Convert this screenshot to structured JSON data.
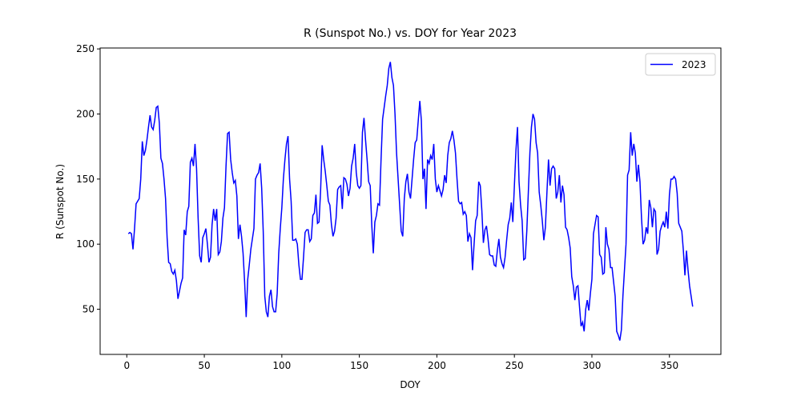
{
  "chart_data": {
    "type": "line",
    "title": "R (Sunspot No.) vs. DOY for Year 2023",
    "x_label": "DOY",
    "y_label": "R (Sunspot No.)",
    "x": [
      1,
      2,
      3,
      4,
      5,
      6,
      7,
      8,
      9,
      10,
      11,
      12,
      13,
      14,
      15,
      16,
      17,
      18,
      19,
      20,
      21,
      22,
      23,
      24,
      25,
      26,
      27,
      28,
      29,
      30,
      31,
      32,
      33,
      34,
      35,
      36,
      37,
      38,
      39,
      40,
      41,
      42,
      43,
      44,
      45,
      46,
      47,
      48,
      49,
      50,
      51,
      52,
      53,
      54,
      55,
      56,
      57,
      58,
      59,
      60,
      61,
      62,
      63,
      64,
      65,
      66,
      67,
      68,
      69,
      70,
      71,
      72,
      73,
      74,
      75,
      76,
      77,
      78,
      79,
      80,
      81,
      82,
      83,
      84,
      85,
      86,
      87,
      88,
      89,
      90,
      91,
      92,
      93,
      94,
      95,
      96,
      97,
      98,
      99,
      100,
      101,
      102,
      103,
      104,
      105,
      106,
      107,
      108,
      109,
      110,
      111,
      112,
      113,
      114,
      115,
      116,
      117,
      118,
      119,
      120,
      121,
      122,
      123,
      124,
      125,
      126,
      127,
      128,
      129,
      130,
      131,
      132,
      133,
      134,
      135,
      136,
      137,
      138,
      139,
      140,
      141,
      142,
      143,
      144,
      145,
      146,
      147,
      148,
      149,
      150,
      151,
      152,
      153,
      154,
      155,
      156,
      157,
      158,
      159,
      160,
      161,
      162,
      163,
      164,
      165,
      166,
      167,
      168,
      169,
      170,
      171,
      172,
      173,
      174,
      175,
      176,
      177,
      178,
      179,
      180,
      181,
      182,
      183,
      184,
      185,
      186,
      187,
      188,
      189,
      190,
      191,
      192,
      193,
      194,
      195,
      196,
      197,
      198,
      199,
      200,
      201,
      202,
      203,
      204,
      205,
      206,
      207,
      208,
      209,
      210,
      211,
      212,
      213,
      214,
      215,
      216,
      217,
      218,
      219,
      220,
      221,
      222,
      223,
      224,
      225,
      226,
      227,
      228,
      229,
      230,
      231,
      232,
      233,
      234,
      235,
      236,
      237,
      238,
      239,
      240,
      241,
      242,
      243,
      244,
      245,
      246,
      247,
      248,
      249,
      250,
      251,
      252,
      253,
      254,
      255,
      256,
      257,
      258,
      259,
      260,
      261,
      262,
      263,
      264,
      265,
      266,
      267,
      268,
      269,
      270,
      271,
      272,
      273,
      274,
      275,
      276,
      277,
      278,
      279,
      280,
      281,
      282,
      283,
      284,
      285,
      286,
      287,
      288,
      289,
      290,
      291,
      292,
      293,
      294,
      295,
      296,
      297,
      298,
      299,
      300,
      301,
      302,
      303,
      304,
      305,
      306,
      307,
      308,
      309,
      310,
      311,
      312,
      313,
      314,
      315,
      316,
      317,
      318,
      319,
      320,
      321,
      322,
      323,
      324,
      325,
      326,
      327,
      328,
      329,
      330,
      331,
      332,
      333,
      334,
      335,
      336,
      337,
      338,
      339,
      340,
      341,
      342,
      343,
      344,
      345,
      346,
      347,
      348,
      349,
      350,
      351,
      352,
      353,
      354,
      355,
      356,
      357,
      358,
      359,
      360,
      361,
      362,
      363,
      364,
      365
    ],
    "series": [
      {
        "name": "2023",
        "color": "#0000ff",
        "values": [
          108,
          109,
          108,
          96,
          112,
          131,
          133,
          135,
          150,
          179,
          168,
          172,
          180,
          190,
          199,
          190,
          188,
          195,
          205,
          206,
          193,
          166,
          162,
          150,
          135,
          105,
          86,
          85,
          79,
          77,
          80,
          72,
          58,
          64,
          70,
          74,
          111,
          107,
          125,
          129,
          163,
          166,
          160,
          177,
          158,
          120,
          91,
          86,
          105,
          108,
          112,
          100,
          86,
          90,
          115,
          127,
          118,
          127,
          92,
          94,
          102,
          120,
          128,
          160,
          185,
          186,
          165,
          155,
          147,
          149,
          137,
          104,
          115,
          106,
          93,
          71,
          44,
          73,
          84,
          96,
          104,
          112,
          150,
          153,
          155,
          162,
          143,
          110,
          60,
          48,
          44,
          60,
          65,
          52,
          48,
          48,
          62,
          93,
          112,
          128,
          150,
          165,
          177,
          183,
          150,
          133,
          103,
          103,
          104,
          100,
          84,
          73,
          73,
          90,
          109,
          111,
          111,
          102,
          104,
          122,
          124,
          138,
          116,
          117,
          141,
          176,
          165,
          156,
          145,
          133,
          130,
          115,
          106,
          110,
          120,
          142,
          144,
          145,
          127,
          151,
          150,
          146,
          137,
          143,
          160,
          166,
          177,
          155,
          145,
          143,
          145,
          186,
          197,
          180,
          165,
          148,
          145,
          115,
          93,
          117,
          122,
          131,
          130,
          165,
          196,
          205,
          214,
          222,
          235,
          240,
          228,
          222,
          200,
          170,
          150,
          130,
          110,
          106,
          135,
          148,
          154,
          140,
          135,
          150,
          165,
          178,
          180,
          195,
          210,
          195,
          150,
          158,
          127,
          165,
          162,
          168,
          165,
          177,
          150,
          140,
          145,
          141,
          137,
          142,
          153,
          147,
          168,
          178,
          181,
          187,
          180,
          170,
          150,
          133,
          131,
          132,
          123,
          125,
          122,
          102,
          108,
          105,
          80,
          100,
          118,
          122,
          148,
          145,
          126,
          101,
          111,
          114,
          104,
          92,
          91,
          91,
          84,
          83,
          95,
          104,
          90,
          85,
          82,
          90,
          103,
          115,
          120,
          132,
          117,
          145,
          172,
          190,
          148,
          130,
          118,
          88,
          89,
          110,
          140,
          170,
          190,
          200,
          196,
          178,
          170,
          140,
          130,
          118,
          103,
          113,
          140,
          165,
          145,
          158,
          160,
          158,
          135,
          140,
          153,
          132,
          145,
          138,
          113,
          111,
          105,
          97,
          75,
          68,
          57,
          67,
          68,
          52,
          37,
          40,
          33,
          50,
          57,
          49,
          62,
          73,
          108,
          115,
          122,
          121,
          92,
          90,
          77,
          78,
          113,
          100,
          96,
          82,
          82,
          71,
          60,
          33,
          30,
          26,
          34,
          60,
          80,
          100,
          153,
          157,
          186,
          168,
          177,
          170,
          148,
          161,
          148,
          120,
          100,
          103,
          113,
          108,
          134,
          128,
          113,
          127,
          125,
          92,
          96,
          110,
          114,
          117,
          113,
          125,
          112,
          138,
          150,
          150,
          152,
          150,
          139,
          116,
          113,
          110,
          95,
          76,
          95,
          80,
          68,
          60,
          52
        ]
      }
    ],
    "xlim": [
      -17.2,
      383.2
    ],
    "ylim": [
      15.3,
      250.7
    ],
    "xticks": [
      0,
      50,
      100,
      150,
      200,
      250,
      300,
      350
    ],
    "yticks": [
      50,
      100,
      150,
      200,
      250
    ],
    "legend": "upper right",
    "grid": false
  }
}
